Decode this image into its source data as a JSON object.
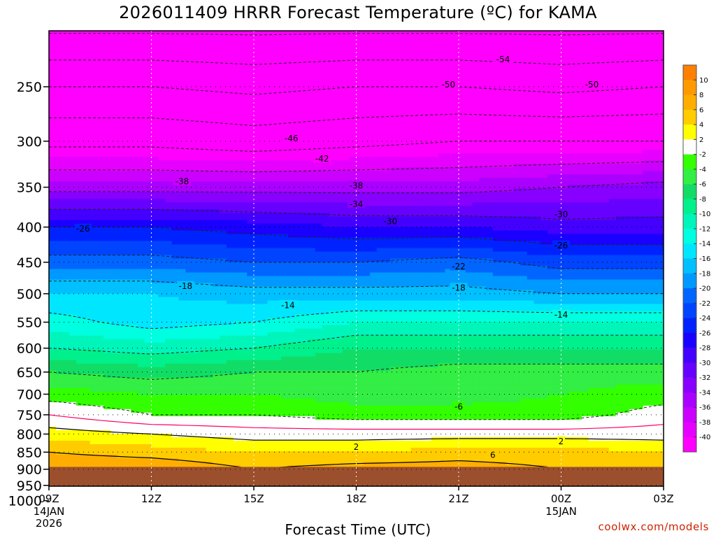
{
  "title": "2026011409 HRRR Forecast Temperature (ºC) for KAMA",
  "xlabel": "Forecast Time (UTC)",
  "credit": "coolwx.com/models",
  "chart_data": {
    "type": "heatmap",
    "title": "2026011409 HRRR Forecast Temperature (ºC) for KAMA",
    "xlabel": "Forecast Time (UTC)",
    "ylabel": "",
    "x_ticks": [
      "09Z",
      "12Z",
      "15Z",
      "18Z",
      "21Z",
      "00Z",
      "03Z"
    ],
    "x_tick_hours": [
      0,
      3,
      6,
      9,
      12,
      15,
      18
    ],
    "x_date_labels": [
      {
        "hour": 0,
        "lines": [
          "14JAN",
          "2026"
        ]
      },
      {
        "hour": 15,
        "lines": [
          "15JAN"
        ]
      }
    ],
    "xlim_hours": [
      0,
      18
    ],
    "y_ticks": [
      250,
      300,
      350,
      400,
      450,
      500,
      550,
      600,
      650,
      700,
      750,
      800,
      850,
      900,
      950,
      1000
    ],
    "ylim_hPa": [
      1050,
      200
    ],
    "y_scale": "log-pressure",
    "grid": true,
    "ground_level_hPa": 893,
    "ground_color": "#9c4f2c",
    "colorbar": {
      "placement": "right",
      "labels": [
        "10",
        "8",
        "6",
        "4",
        "2",
        "-2",
        "-4",
        "-6",
        "-8",
        "-10",
        "-12",
        "-14",
        "-16",
        "-18",
        "-20",
        "-22",
        "-24",
        "-26",
        "-28",
        "-30",
        "-32",
        "-34",
        "-36",
        "-38",
        "-40"
      ],
      "bins": [
        {
          "lo": 10,
          "hi": 12,
          "color": "#ff8000"
        },
        {
          "lo": 8,
          "hi": 10,
          "color": "#ff9900"
        },
        {
          "lo": 6,
          "hi": 8,
          "color": "#ffad00"
        },
        {
          "lo": 4,
          "hi": 6,
          "color": "#ffcc00"
        },
        {
          "lo": 2,
          "hi": 4,
          "color": "#ffff00"
        },
        {
          "lo": -2,
          "hi": 2,
          "color": "#ffffff"
        },
        {
          "lo": -4,
          "hi": -2,
          "color": "#33ff00"
        },
        {
          "lo": -6,
          "hi": -4,
          "color": "#33ee44"
        },
        {
          "lo": -8,
          "hi": -6,
          "color": "#11dd66"
        },
        {
          "lo": -10,
          "hi": -8,
          "color": "#00f08c"
        },
        {
          "lo": -12,
          "hi": -10,
          "color": "#00f5bb"
        },
        {
          "lo": -14,
          "hi": -12,
          "color": "#00ffe0"
        },
        {
          "lo": -16,
          "hi": -14,
          "color": "#00e6ff"
        },
        {
          "lo": -18,
          "hi": -16,
          "color": "#00c0ff"
        },
        {
          "lo": -20,
          "hi": -18,
          "color": "#0099ff"
        },
        {
          "lo": -22,
          "hi": -20,
          "color": "#0066ff"
        },
        {
          "lo": -24,
          "hi": -22,
          "color": "#0044ff"
        },
        {
          "lo": -26,
          "hi": -24,
          "color": "#0022ff"
        },
        {
          "lo": -28,
          "hi": -26,
          "color": "#1a00ff"
        },
        {
          "lo": -30,
          "hi": -28,
          "color": "#4400ff"
        },
        {
          "lo": -32,
          "hi": -30,
          "color": "#6600ff"
        },
        {
          "lo": -34,
          "hi": -32,
          "color": "#8800ff"
        },
        {
          "lo": -36,
          "hi": -34,
          "color": "#aa00ff"
        },
        {
          "lo": -38,
          "hi": -36,
          "color": "#cc00ff"
        },
        {
          "lo": -40,
          "hi": -38,
          "color": "#e600ff"
        },
        {
          "lo": -99,
          "hi": -40,
          "color": "#ff00ff"
        }
      ]
    },
    "temperature_profile": {
      "hours": [
        0,
        3,
        6,
        9,
        12,
        15,
        18
      ],
      "levels_hPa": [
        200,
        250,
        300,
        350,
        400,
        450,
        500,
        550,
        600,
        650,
        700,
        750,
        800,
        850,
        900
      ],
      "temps_C": [
        [
          -60,
          -60,
          -60,
          -60,
          -60,
          -60,
          -60
        ],
        [
          -50,
          -50,
          -51,
          -50,
          -50,
          -51,
          -50
        ],
        [
          -43,
          -43,
          -44,
          -43,
          -42,
          -42,
          -42
        ],
        [
          -35,
          -35,
          -35,
          -35,
          -35,
          -34,
          -33
        ],
        [
          -26,
          -26,
          -27,
          -28,
          -28,
          -29,
          -29
        ],
        [
          -21,
          -21,
          -22,
          -22,
          -21,
          -23,
          -23
        ],
        [
          -16,
          -16,
          -17,
          -17,
          -17,
          -18,
          -18
        ],
        [
          -13,
          -15,
          -14,
          -12,
          -12,
          -12,
          -12
        ],
        [
          -10,
          -11,
          -10,
          -8,
          -8,
          -8,
          -8
        ],
        [
          -6,
          -7,
          -6,
          -6,
          -5,
          -5,
          -5
        ],
        [
          -3,
          -4,
          -4,
          -5,
          -5,
          -4,
          -3
        ],
        [
          0,
          -2,
          -2,
          -3,
          -3,
          -3,
          -1
        ],
        [
          3,
          2,
          1,
          1,
          1,
          1,
          1
        ],
        [
          6,
          5,
          4,
          4,
          5,
          5,
          4
        ],
        [
          8,
          8,
          6,
          7,
          7,
          6,
          6
        ]
      ]
    },
    "contour_labels": [
      {
        "hour": 13.3,
        "level_hPa": 228,
        "text": "-54"
      },
      {
        "hour": 11.7,
        "level_hPa": 248,
        "text": "-50"
      },
      {
        "hour": 15.9,
        "level_hPa": 248,
        "text": "-50"
      },
      {
        "hour": 7.1,
        "level_hPa": 297,
        "text": "-46"
      },
      {
        "hour": 8.0,
        "level_hPa": 318,
        "text": "-42"
      },
      {
        "hour": 3.9,
        "level_hPa": 343,
        "text": "-38"
      },
      {
        "hour": 9.0,
        "level_hPa": 348,
        "text": "-38"
      },
      {
        "hour": 9.0,
        "level_hPa": 370,
        "text": "-34"
      },
      {
        "hour": 10.0,
        "level_hPa": 392,
        "text": "-30"
      },
      {
        "hour": 15.0,
        "level_hPa": 383,
        "text": "-30"
      },
      {
        "hour": 1.0,
        "level_hPa": 402,
        "text": "-26"
      },
      {
        "hour": 15.0,
        "level_hPa": 425,
        "text": "-26"
      },
      {
        "hour": 12.0,
        "level_hPa": 456,
        "text": "-22"
      },
      {
        "hour": 4.0,
        "level_hPa": 487,
        "text": "-18"
      },
      {
        "hour": 12.0,
        "level_hPa": 490,
        "text": "-18"
      },
      {
        "hour": 7.0,
        "level_hPa": 519,
        "text": "-14"
      },
      {
        "hour": 15.0,
        "level_hPa": 536,
        "text": "-14"
      },
      {
        "hour": 12.0,
        "level_hPa": 729,
        "text": "-6"
      },
      {
        "hour": 9.0,
        "level_hPa": 835,
        "text": "2"
      },
      {
        "hour": 15.0,
        "level_hPa": 819,
        "text": "2"
      },
      {
        "hour": 13.0,
        "level_hPa": 857,
        "text": "6"
      }
    ]
  }
}
